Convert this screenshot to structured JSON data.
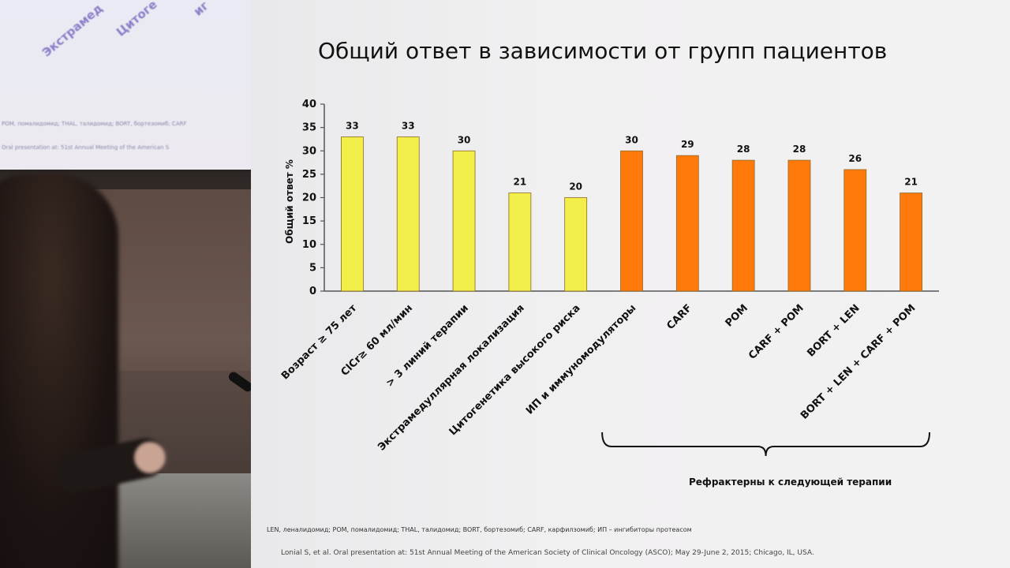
{
  "slide": {
    "title": "Общий ответ в зависимости от групп пациентов",
    "group_label": "Рефрактерны к следующей терапии",
    "footnote": "LEN, леналидомид; POM, помалидомид; THAL, талидомид; BORT, бортезомиб; CARF, карфилзомиб; ИП – ингибиторы протеасом",
    "citation": "Lonial S, et al. Oral presentation at: 51st Annual Meeting of the American Society of Clinical Oncology (ASCO); May 29-June 2, 2015; Chicago, IL, USA."
  },
  "previous_slide": {
    "diagonal_labels": [
      "Экстрамед",
      "Цитоге",
      "иг"
    ],
    "line1": "POM, помалидомид; THAL, талидомид; BORT, бортезомиб; CARF",
    "line2": "Oral presentation at: 51st Annual Meeting of the American S"
  },
  "chart_data": {
    "type": "bar",
    "ylabel": "Общий ответ %",
    "ylim": [
      0,
      40
    ],
    "yticks": [
      0,
      5,
      10,
      15,
      20,
      25,
      30,
      35,
      40
    ],
    "grid": false,
    "categories": [
      "Возраст ≥ 75 лет",
      "ClCr≥ 60 мл/мин",
      "> 3 линий терапии",
      "Экстрамедуллярная локализация",
      "Цитогенетика высокого риска",
      "ИП и иммуномодуляторы",
      "CARF",
      "POM",
      "CARF + POM",
      "BORT + LEN",
      "BORT + LEN + CARF + POM"
    ],
    "values": [
      33,
      33,
      30,
      21,
      20,
      30,
      29,
      28,
      28,
      26,
      21
    ],
    "bar_colors": [
      "#f2ee4a",
      "#f2ee4a",
      "#f2ee4a",
      "#f2ee4a",
      "#f2ee4a",
      "#ff7a0a",
      "#ff7a0a",
      "#ff7a0a",
      "#ff7a0a",
      "#ff7a0a",
      "#ff7a0a"
    ],
    "bracket_group": {
      "from_index": 5,
      "to_index": 10
    }
  }
}
